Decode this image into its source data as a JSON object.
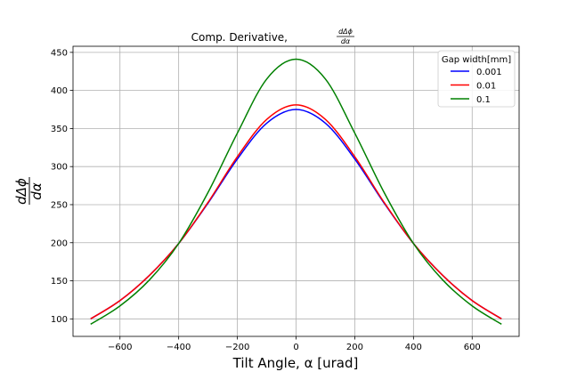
{
  "chart_data": {
    "type": "line",
    "title": "Comp. Derivative, dΔϕ/dα",
    "title_text": "Comp. Derivative,",
    "title_frac_num": "dΔϕ",
    "title_frac_den": "dα",
    "xlabel": "Tilt Angle, α [urad]",
    "ylabel_num": "dΔϕ",
    "ylabel_den": "dα",
    "xlim": [
      -760,
      760
    ],
    "ylim": [
      77,
      458
    ],
    "xticks": [
      -600,
      -400,
      -200,
      0,
      200,
      400,
      600
    ],
    "yticks": [
      100,
      150,
      200,
      250,
      300,
      350,
      400,
      450
    ],
    "grid": true,
    "legend": {
      "title": "Gap width[mm]",
      "position": "top-right"
    },
    "x": [
      -700,
      -600,
      -500,
      -400,
      -300,
      -200,
      -100,
      0,
      100,
      200,
      300,
      400,
      500,
      600,
      700
    ],
    "series": [
      {
        "name": "0.001",
        "color": "#0000ff",
        "values": [
          100,
          124,
          157,
          199,
          252,
          310,
          357,
          375,
          357,
          310,
          252,
          199,
          157,
          124,
          100
        ]
      },
      {
        "name": "0.01",
        "color": "#ff0000",
        "values": [
          100,
          124,
          157,
          199,
          253,
          313,
          362,
          381,
          362,
          313,
          253,
          199,
          157,
          124,
          100
        ]
      },
      {
        "name": "0.1",
        "color": "#008000",
        "values": [
          93,
          117,
          151,
          199,
          266,
          344,
          415,
          441,
          415,
          344,
          266,
          199,
          151,
          117,
          93
        ]
      }
    ]
  }
}
